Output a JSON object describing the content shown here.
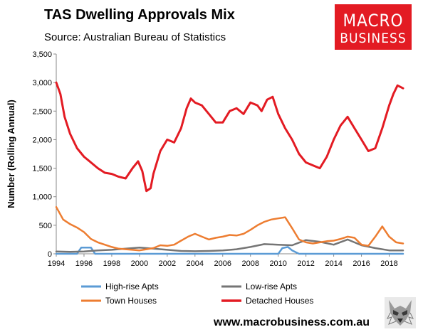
{
  "title": "TAS Dwelling Approvals Mix",
  "subtitle": "Source: Australian Bureau of Statistics",
  "logo": {
    "line1": "MACRO",
    "line2": "BUSINESS"
  },
  "footer_url": "www.macrobusiness.com.au",
  "colors": {
    "high_rise": "#5b9bd5",
    "low_rise": "#757575",
    "town": "#ed7d31",
    "detached": "#e31b23",
    "logo_bg": "#e31b23"
  },
  "chart_data": {
    "type": "line",
    "ylabel": "Number (Rolling Annual)",
    "xlim": [
      1994.0,
      2019.0
    ],
    "ylim": [
      0,
      3500
    ],
    "y_ticks": [
      0,
      500,
      1000,
      1500,
      2000,
      2500,
      3000,
      3500
    ],
    "y_tick_labels": [
      "0",
      "500",
      "1,000",
      "1,500",
      "2,000",
      "2,500",
      "3,000",
      "3,500"
    ],
    "x_ticks": [
      1994,
      1996,
      1998,
      2000,
      2002,
      2004,
      2006,
      2008,
      2010,
      2012,
      2014,
      2016,
      2018
    ],
    "x_tick_labels": [
      "1994",
      "1996",
      "1998",
      "2000",
      "2002",
      "2004",
      "2006",
      "2008",
      "2010",
      "2012",
      "2014",
      "2016",
      "2018"
    ],
    "legend_position": "bottom",
    "series": [
      {
        "name": "High-rise Apts",
        "color": "#5b9bd5",
        "x": [
          1994.0,
          1995.5,
          1995.8,
          1996.5,
          1996.8,
          2010.0,
          2010.3,
          2010.7,
          2011.0,
          2011.5,
          2019.0
        ],
        "y": [
          0,
          0,
          110,
          110,
          0,
          0,
          100,
          120,
          60,
          0,
          0
        ]
      },
      {
        "name": "Low-rise Apts",
        "color": "#757575",
        "x": [
          1994.0,
          1995.0,
          1996.0,
          1997.0,
          1998.0,
          1999.0,
          2000.0,
          2001.0,
          2002.0,
          2003.0,
          2004.0,
          2005.0,
          2006.0,
          2007.0,
          2008.0,
          2009.0,
          2010.0,
          2011.0,
          2012.0,
          2013.0,
          2014.0,
          2015.0,
          2016.0,
          2017.0,
          2018.0,
          2019.0
        ],
        "y": [
          40,
          35,
          40,
          60,
          70,
          90,
          110,
          90,
          70,
          50,
          45,
          50,
          60,
          80,
          120,
          170,
          160,
          150,
          240,
          210,
          160,
          250,
          150,
          100,
          60,
          60
        ]
      },
      {
        "name": "Town Houses",
        "color": "#ed7d31",
        "x": [
          1994.0,
          1994.5,
          1995.0,
          1995.5,
          1996.0,
          1996.5,
          1997.0,
          1997.5,
          1998.0,
          1998.5,
          1999.0,
          1999.5,
          2000.0,
          2000.5,
          2001.0,
          2001.5,
          2002.0,
          2002.5,
          2003.0,
          2003.5,
          2004.0,
          2004.5,
          2005.0,
          2005.5,
          2006.0,
          2006.5,
          2007.0,
          2007.5,
          2008.0,
          2008.5,
          2009.0,
          2009.5,
          2010.0,
          2010.5,
          2011.0,
          2011.5,
          2012.0,
          2012.5,
          2013.0,
          2013.5,
          2014.0,
          2014.5,
          2015.0,
          2015.5,
          2016.0,
          2016.5,
          2017.0,
          2017.5,
          2018.0,
          2018.5,
          2019.0
        ],
        "y": [
          820,
          600,
          520,
          460,
          380,
          260,
          200,
          160,
          120,
          90,
          80,
          70,
          60,
          80,
          100,
          150,
          140,
          160,
          230,
          300,
          350,
          300,
          250,
          280,
          300,
          330,
          320,
          350,
          420,
          500,
          560,
          600,
          620,
          640,
          450,
          250,
          200,
          180,
          200,
          220,
          230,
          260,
          300,
          280,
          160,
          140,
          300,
          480,
          300,
          200,
          180
        ]
      },
      {
        "name": "Detached Houses",
        "color": "#e31b23",
        "x": [
          1994.0,
          1994.3,
          1994.6,
          1995.0,
          1995.5,
          1996.0,
          1996.5,
          1997.0,
          1997.5,
          1998.0,
          1998.5,
          1999.0,
          1999.5,
          1999.9,
          2000.2,
          2000.5,
          2000.8,
          2001.0,
          2001.5,
          2002.0,
          2002.5,
          2003.0,
          2003.4,
          2003.7,
          2004.0,
          2004.5,
          2005.0,
          2005.5,
          2006.0,
          2006.5,
          2007.0,
          2007.5,
          2008.0,
          2008.5,
          2008.8,
          2009.2,
          2009.6,
          2010.0,
          2010.5,
          2011.0,
          2011.5,
          2012.0,
          2012.5,
          2013.0,
          2013.5,
          2014.0,
          2014.5,
          2015.0,
          2015.5,
          2016.0,
          2016.5,
          2017.0,
          2017.5,
          2018.0,
          2018.3,
          2018.6,
          2019.0
        ],
        "y": [
          3000,
          2800,
          2400,
          2100,
          1850,
          1700,
          1600,
          1500,
          1420,
          1400,
          1350,
          1320,
          1500,
          1620,
          1450,
          1100,
          1150,
          1400,
          1800,
          2000,
          1950,
          2200,
          2550,
          2720,
          2650,
          2600,
          2450,
          2300,
          2300,
          2500,
          2550,
          2450,
          2650,
          2600,
          2500,
          2700,
          2750,
          2450,
          2200,
          2000,
          1750,
          1600,
          1550,
          1500,
          1700,
          2000,
          2250,
          2400,
          2200,
          2000,
          1800,
          1850,
          2200,
          2600,
          2800,
          2950,
          2900
        ]
      }
    ]
  }
}
